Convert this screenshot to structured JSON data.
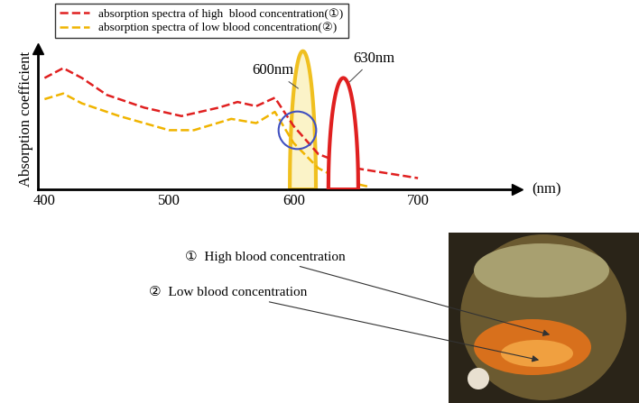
{
  "chart_data": {
    "type": "line",
    "x_label": "(nm)",
    "y_label": "Absorption coefficient",
    "xlim": [
      395,
      780
    ],
    "xticks": [
      400,
      500,
      600,
      700
    ],
    "ylim": [
      0,
      1
    ],
    "tick_labels": "x",
    "legend": "upper left",
    "series": [
      {
        "name": "absorption spectra of high  blood concentration(①)",
        "color": "#e02020",
        "line_style": "dashed",
        "x": [
          400,
          415,
          430,
          450,
          480,
          510,
          540,
          555,
          570,
          585,
          600,
          620,
          650,
          700
        ],
        "values": [
          0.79,
          0.86,
          0.79,
          0.67,
          0.58,
          0.52,
          0.58,
          0.62,
          0.59,
          0.65,
          0.45,
          0.25,
          0.15,
          0.08
        ]
      },
      {
        "name": "absorption spectra of low blood concentration(②)",
        "color": "#f0b400",
        "line_style": "dashed",
        "x": [
          400,
          415,
          430,
          460,
          500,
          520,
          550,
          570,
          585,
          600,
          620,
          640,
          660
        ],
        "values": [
          0.64,
          0.68,
          0.61,
          0.52,
          0.42,
          0.42,
          0.5,
          0.47,
          0.55,
          0.33,
          0.15,
          0.06,
          0.02
        ]
      }
    ],
    "bands": [
      {
        "label": "600nm",
        "color": "#f0c020",
        "start": 597,
        "end": 618,
        "peak": 0.98
      },
      {
        "label": "630nm",
        "color": "#e02020",
        "start": 628,
        "end": 652,
        "peak": 0.79
      }
    ]
  },
  "photo": {
    "annotations": [
      "①  High blood concentration",
      "②  Low blood concentration"
    ]
  }
}
